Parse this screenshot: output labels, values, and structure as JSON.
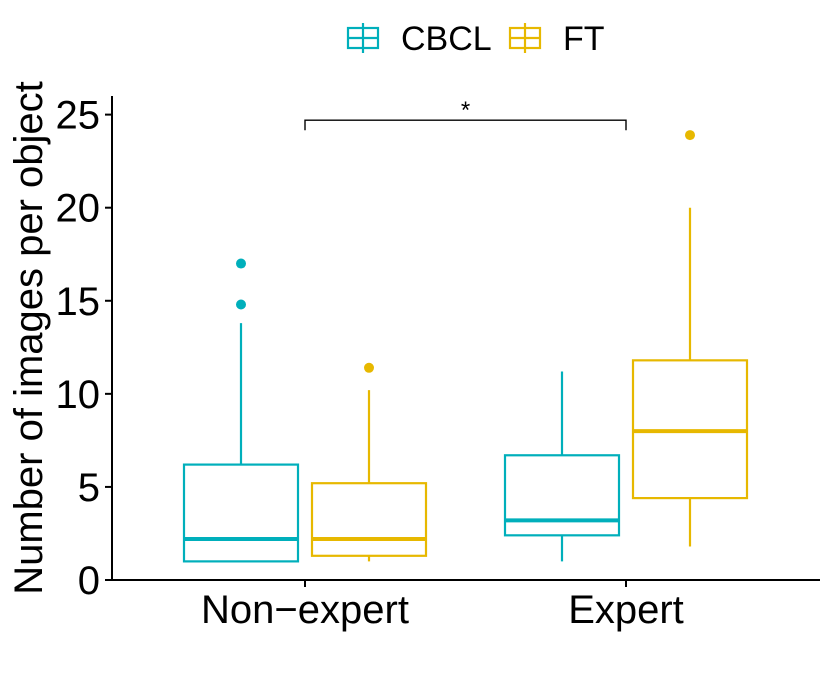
{
  "chart_data": {
    "type": "boxplot",
    "title": "",
    "xlabel": "",
    "ylabel": "Number of images per object",
    "ylim": [
      0,
      26
    ],
    "y_ticks": [
      0,
      5,
      10,
      15,
      20,
      25
    ],
    "categories": [
      "Non−expert",
      "Expert"
    ],
    "legend": {
      "position": "top",
      "entries": [
        "CBCL",
        "FT"
      ]
    },
    "series": [
      {
        "name": "CBCL",
        "color": "#00AFBB",
        "boxes": [
          {
            "category": "Non−expert",
            "min": 1.0,
            "q1": 1.0,
            "median": 2.2,
            "q3": 6.2,
            "max": 13.8,
            "outliers": [
              14.8,
              17.0
            ]
          },
          {
            "category": "Expert",
            "min": 1.0,
            "q1": 2.4,
            "median": 3.2,
            "q3": 6.7,
            "max": 11.2,
            "outliers": []
          }
        ]
      },
      {
        "name": "FT",
        "color": "#E7B800",
        "boxes": [
          {
            "category": "Non−expert",
            "min": 1.0,
            "q1": 1.3,
            "median": 2.2,
            "q3": 5.2,
            "max": 10.2,
            "outliers": [
              11.4
            ]
          },
          {
            "category": "Expert",
            "min": 1.8,
            "q1": 4.4,
            "median": 8.0,
            "q3": 11.8,
            "max": 20.0,
            "outliers": [
              23.9
            ]
          }
        ]
      }
    ],
    "annotations": [
      {
        "type": "significance-bracket",
        "from": "Non−expert",
        "to": "Expert",
        "y": 24.7,
        "label": "*"
      }
    ],
    "grid": false
  }
}
